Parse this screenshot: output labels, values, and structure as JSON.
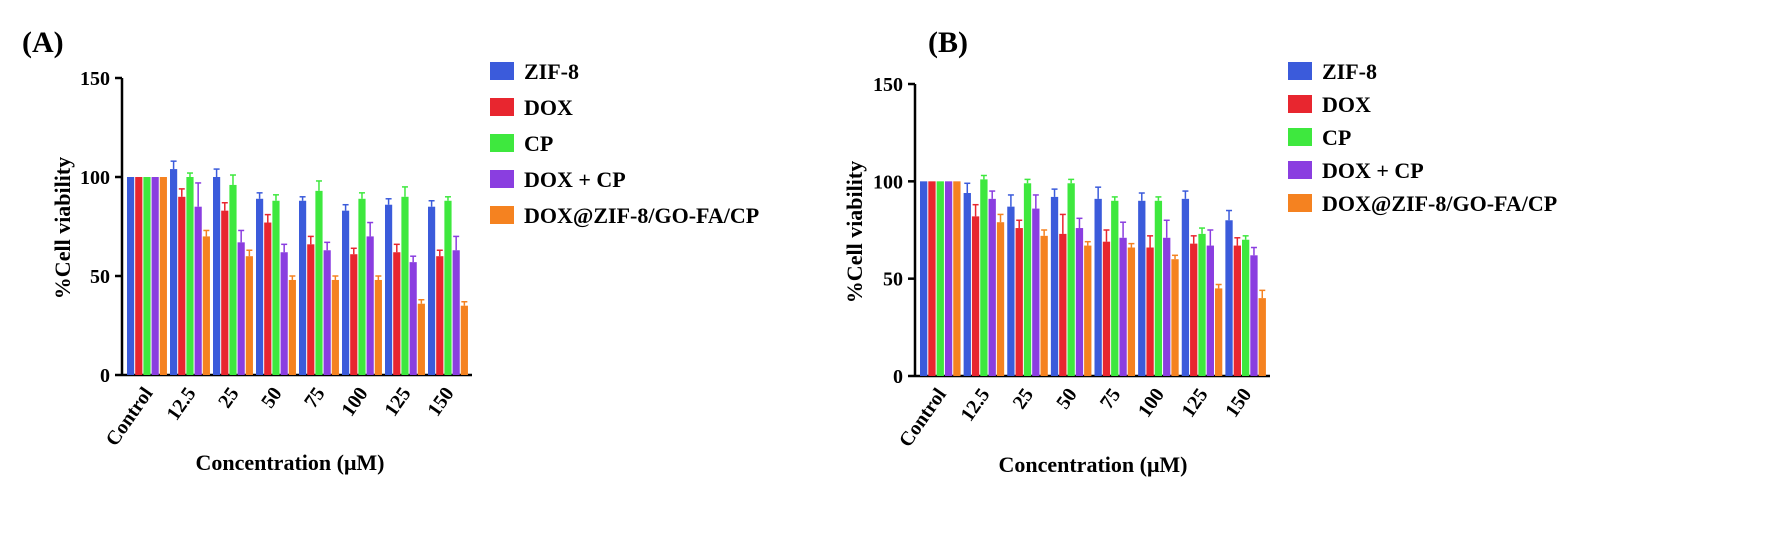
{
  "chart_data": [
    {
      "type": "bar",
      "panel_label": "(A)",
      "ylabel": "%Cell viability",
      "xlabel": "Concentration (μM)",
      "ylim": [
        0,
        150
      ],
      "yticks": [
        0,
        50,
        100,
        150
      ],
      "categories": [
        "Control",
        "12.5",
        "25",
        "50",
        "75",
        "100",
        "125",
        "150"
      ],
      "legend_position": "right",
      "series": [
        {
          "name": "ZIF-8",
          "color": "#3b5bdb",
          "values": [
            100,
            104,
            100,
            89,
            88,
            83,
            86,
            85
          ],
          "errors": [
            0,
            4,
            4,
            3,
            2,
            3,
            3,
            3
          ]
        },
        {
          "name": "DOX",
          "color": "#e8262f",
          "values": [
            100,
            90,
            83,
            77,
            66,
            61,
            62,
            60
          ],
          "errors": [
            0,
            4,
            4,
            4,
            4,
            3,
            4,
            3
          ]
        },
        {
          "name": "CP",
          "color": "#3ee83e",
          "values": [
            100,
            100,
            96,
            88,
            93,
            89,
            90,
            88
          ],
          "errors": [
            0,
            2,
            5,
            3,
            5,
            3,
            5,
            2
          ]
        },
        {
          "name": "DOX + CP",
          "color": "#8a3ee0",
          "values": [
            100,
            85,
            67,
            62,
            63,
            70,
            57,
            63
          ],
          "errors": [
            0,
            12,
            6,
            4,
            4,
            7,
            3,
            7
          ]
        },
        {
          "name": "DOX@ZIF-8/GO-FA/CP",
          "color": "#f58220",
          "values": [
            100,
            70,
            60,
            48,
            48,
            48,
            36,
            35
          ],
          "errors": [
            0,
            3,
            3,
            2,
            2,
            2,
            2,
            2
          ]
        }
      ]
    },
    {
      "type": "bar",
      "panel_label": "(B)",
      "ylabel": "%Cell viability",
      "xlabel": "Concentration (μM)",
      "ylim": [
        0,
        150
      ],
      "yticks": [
        0,
        50,
        100,
        150
      ],
      "categories": [
        "Control",
        "12.5",
        "25",
        "50",
        "75",
        "100",
        "125",
        "150"
      ],
      "legend_position": "right",
      "series": [
        {
          "name": "ZIF-8",
          "color": "#3b5bdb",
          "values": [
            100,
            94,
            87,
            92,
            91,
            90,
            91,
            80
          ],
          "errors": [
            0,
            5,
            6,
            4,
            6,
            4,
            4,
            5
          ]
        },
        {
          "name": "DOX",
          "color": "#e8262f",
          "values": [
            100,
            82,
            76,
            73,
            69,
            66,
            68,
            67
          ],
          "errors": [
            0,
            6,
            4,
            10,
            6,
            6,
            4,
            4
          ]
        },
        {
          "name": "CP",
          "color": "#3ee83e",
          "values": [
            100,
            101,
            99,
            99,
            90,
            90,
            73,
            70
          ],
          "errors": [
            0,
            2,
            2,
            2,
            2,
            2,
            3,
            2
          ]
        },
        {
          "name": "DOX + CP",
          "color": "#8a3ee0",
          "values": [
            100,
            91,
            86,
            76,
            71,
            71,
            67,
            62
          ],
          "errors": [
            0,
            4,
            7,
            5,
            8,
            9,
            8,
            4
          ]
        },
        {
          "name": "DOX@ZIF-8/GO-FA/CP",
          "color": "#f58220",
          "values": [
            100,
            79,
            72,
            67,
            66,
            60,
            45,
            40
          ],
          "errors": [
            0,
            4,
            3,
            2,
            2,
            2,
            2,
            4
          ]
        }
      ]
    }
  ]
}
